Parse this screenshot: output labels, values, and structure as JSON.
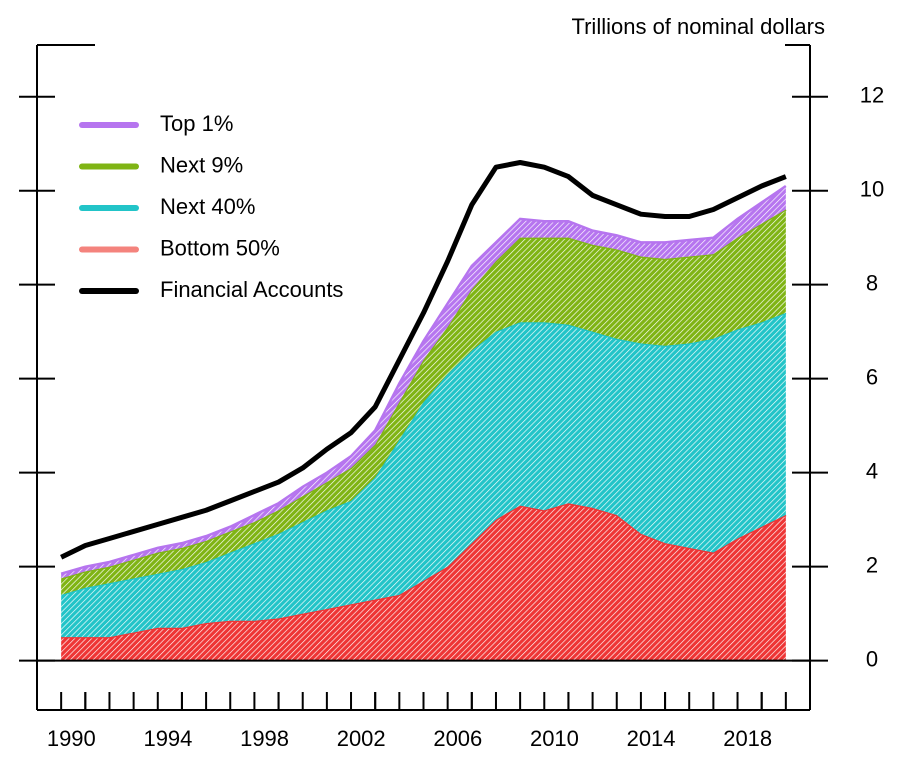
{
  "chart_data": {
    "type": "stacked-area",
    "y_label": "Trillions of nominal dollars",
    "x": [
      1989,
      1990,
      1991,
      1992,
      1993,
      1994,
      1995,
      1996,
      1997,
      1998,
      1999,
      2000,
      2001,
      2002,
      2003,
      2004,
      2005,
      2006,
      2007,
      2008,
      2009,
      2010,
      2011,
      2012,
      2013,
      2014,
      2015,
      2016,
      2017,
      2018,
      2019
    ],
    "xlim": [
      1988,
      2020
    ],
    "xticks": [
      1990,
      1994,
      1998,
      2002,
      2006,
      2010,
      2014,
      2018
    ],
    "ylim": [
      -1.05,
      13.1
    ],
    "yticks": [
      0,
      2,
      4,
      6,
      8,
      10,
      12
    ],
    "y_axis_side": "right",
    "legend": "upper-left",
    "series": [
      {
        "name": "Top 1%",
        "color": "#b675ef",
        "type": "area",
        "values": [
          0.1,
          0.1,
          0.1,
          0.1,
          0.1,
          0.1,
          0.1,
          0.1,
          0.15,
          0.15,
          0.2,
          0.2,
          0.25,
          0.3,
          0.4,
          0.4,
          0.5,
          0.5,
          0.4,
          0.4,
          0.35,
          0.35,
          0.3,
          0.3,
          0.3,
          0.35,
          0.35,
          0.35,
          0.4,
          0.45,
          0.5
        ]
      },
      {
        "name": "Next 9%",
        "color": "#7fb414",
        "type": "area",
        "values": [
          0.35,
          0.35,
          0.35,
          0.4,
          0.45,
          0.45,
          0.45,
          0.45,
          0.45,
          0.5,
          0.55,
          0.6,
          0.7,
          0.7,
          0.8,
          0.9,
          1.0,
          1.3,
          1.5,
          1.8,
          1.8,
          1.85,
          1.85,
          1.9,
          1.85,
          1.85,
          1.85,
          1.8,
          1.95,
          2.1,
          2.2
        ]
      },
      {
        "name": "Next 40%",
        "color": "#22c4c8",
        "type": "area",
        "values": [
          0.9,
          1.05,
          1.15,
          1.15,
          1.15,
          1.25,
          1.3,
          1.45,
          1.65,
          1.8,
          1.95,
          2.1,
          2.2,
          2.6,
          3.3,
          3.8,
          4.1,
          4.1,
          4.0,
          3.9,
          4.0,
          3.8,
          3.75,
          3.75,
          4.05,
          4.2,
          4.35,
          4.55,
          4.45,
          4.35,
          4.3
        ]
      },
      {
        "name": "Bottom 50%",
        "color": "#ee3535",
        "legend_color": "#f4837d",
        "type": "area",
        "values": [
          0.5,
          0.5,
          0.5,
          0.6,
          0.7,
          0.7,
          0.8,
          0.85,
          0.85,
          0.9,
          1.0,
          1.1,
          1.2,
          1.3,
          1.4,
          1.7,
          2.0,
          2.5,
          3.0,
          3.3,
          3.2,
          3.35,
          3.25,
          3.1,
          2.7,
          2.5,
          2.4,
          2.3,
          2.6,
          2.85,
          3.1
        ]
      },
      {
        "name": "Financial Accounts",
        "color": "#000000",
        "type": "line",
        "values": [
          2.2,
          2.45,
          2.6,
          2.75,
          2.9,
          3.05,
          3.2,
          3.4,
          3.6,
          3.8,
          4.1,
          4.5,
          4.85,
          5.4,
          6.4,
          7.4,
          8.5,
          9.7,
          10.5,
          10.6,
          10.5,
          10.3,
          9.9,
          9.7,
          9.5,
          9.45,
          9.45,
          9.6,
          9.85,
          10.1,
          10.3
        ]
      }
    ]
  }
}
